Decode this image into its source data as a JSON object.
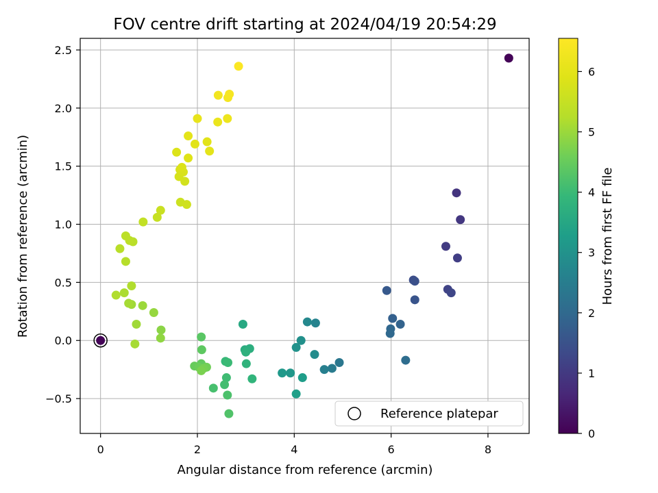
{
  "chart_data": {
    "type": "scatter",
    "title": "FOV centre drift starting at 2024/04/19 20:54:29",
    "xlabel": "Angular distance from reference (arcmin)",
    "ylabel": "Rotation from reference (arcmin)",
    "xlim": [
      -0.42,
      8.85
    ],
    "ylim": [
      -0.8,
      2.6
    ],
    "xticks": [
      0,
      2,
      4,
      6,
      8
    ],
    "yticks": [
      -0.5,
      0.0,
      0.5,
      1.0,
      1.5,
      2.0,
      2.5
    ],
    "xtick_labels": [
      "0",
      "2",
      "4",
      "6",
      "8"
    ],
    "ytick_labels": [
      "−0.5",
      "0.0",
      "0.5",
      "1.0",
      "1.5",
      "2.0",
      "2.5"
    ],
    "grid": true,
    "legend": {
      "position": "bottom-right",
      "label": "Reference platepar"
    },
    "colorbar": {
      "label": "Hours from first FF file",
      "min": 0,
      "max": 6.55,
      "ticks": [
        0,
        1,
        2,
        3,
        4,
        5,
        6
      ],
      "tick_labels": [
        "0",
        "1",
        "2",
        "3",
        "4",
        "5",
        "6"
      ],
      "colormap": "viridis"
    },
    "reference_point": {
      "x": 0,
      "y": 0,
      "label": "Reference platepar"
    },
    "points": [
      {
        "x": 0.0,
        "y": 0.0,
        "hours": 0.05
      },
      {
        "x": 8.43,
        "y": 2.43,
        "hours": 0.05
      },
      {
        "x": 7.35,
        "y": 1.27,
        "hours": 0.9
      },
      {
        "x": 7.43,
        "y": 1.04,
        "hours": 0.95
      },
      {
        "x": 7.13,
        "y": 0.81,
        "hours": 1.05
      },
      {
        "x": 7.37,
        "y": 0.71,
        "hours": 1.1
      },
      {
        "x": 7.17,
        "y": 0.44,
        "hours": 1.2
      },
      {
        "x": 7.24,
        "y": 0.41,
        "hours": 1.25
      },
      {
        "x": 6.46,
        "y": 0.52,
        "hours": 1.4
      },
      {
        "x": 6.49,
        "y": 0.51,
        "hours": 1.45
      },
      {
        "x": 6.49,
        "y": 0.35,
        "hours": 1.55
      },
      {
        "x": 5.91,
        "y": 0.43,
        "hours": 1.65
      },
      {
        "x": 6.03,
        "y": 0.19,
        "hours": 1.8
      },
      {
        "x": 6.19,
        "y": 0.14,
        "hours": 1.85
      },
      {
        "x": 5.99,
        "y": 0.1,
        "hours": 1.95
      },
      {
        "x": 5.98,
        "y": 0.06,
        "hours": 2.0
      },
      {
        "x": 6.3,
        "y": -0.17,
        "hours": 2.1
      },
      {
        "x": 4.93,
        "y": -0.19,
        "hours": 2.35
      },
      {
        "x": 4.78,
        "y": -0.24,
        "hours": 2.45
      },
      {
        "x": 4.62,
        "y": -0.25,
        "hours": 2.55
      },
      {
        "x": 4.44,
        "y": 0.15,
        "hours": 2.65
      },
      {
        "x": 4.27,
        "y": 0.16,
        "hours": 2.75
      },
      {
        "x": 4.42,
        "y": -0.12,
        "hours": 2.85
      },
      {
        "x": 4.14,
        "y": 0.0,
        "hours": 2.95
      },
      {
        "x": 4.04,
        "y": -0.06,
        "hours": 3.0
      },
      {
        "x": 3.92,
        "y": -0.28,
        "hours": 3.1
      },
      {
        "x": 3.75,
        "y": -0.28,
        "hours": 3.15
      },
      {
        "x": 4.17,
        "y": -0.32,
        "hours": 3.25
      },
      {
        "x": 4.04,
        "y": -0.46,
        "hours": 3.3
      },
      {
        "x": 2.94,
        "y": 0.14,
        "hours": 3.55
      },
      {
        "x": 2.98,
        "y": -0.08,
        "hours": 3.65
      },
      {
        "x": 3.08,
        "y": -0.07,
        "hours": 3.7
      },
      {
        "x": 3.0,
        "y": -0.1,
        "hours": 3.75
      },
      {
        "x": 3.01,
        "y": -0.2,
        "hours": 3.8
      },
      {
        "x": 3.13,
        "y": -0.33,
        "hours": 3.85
      },
      {
        "x": 2.58,
        "y": -0.18,
        "hours": 3.95
      },
      {
        "x": 2.63,
        "y": -0.19,
        "hours": 4.0
      },
      {
        "x": 2.6,
        "y": -0.32,
        "hours": 4.05
      },
      {
        "x": 2.56,
        "y": -0.38,
        "hours": 4.1
      },
      {
        "x": 2.33,
        "y": -0.41,
        "hours": 4.15
      },
      {
        "x": 2.62,
        "y": -0.47,
        "hours": 4.2
      },
      {
        "x": 2.65,
        "y": -0.63,
        "hours": 4.25
      },
      {
        "x": 2.08,
        "y": 0.03,
        "hours": 4.35
      },
      {
        "x": 2.09,
        "y": -0.08,
        "hours": 4.4
      },
      {
        "x": 2.08,
        "y": -0.2,
        "hours": 4.45
      },
      {
        "x": 1.94,
        "y": -0.22,
        "hours": 4.5
      },
      {
        "x": 2.03,
        "y": -0.23,
        "hours": 4.55
      },
      {
        "x": 2.19,
        "y": -0.23,
        "hours": 4.6
      },
      {
        "x": 2.13,
        "y": -0.24,
        "hours": 4.65
      },
      {
        "x": 2.08,
        "y": -0.26,
        "hours": 4.7
      },
      {
        "x": 1.25,
        "y": 0.09,
        "hours": 4.85
      },
      {
        "x": 1.24,
        "y": 0.02,
        "hours": 4.9
      },
      {
        "x": 1.1,
        "y": 0.24,
        "hours": 4.95
      },
      {
        "x": 0.87,
        "y": 0.3,
        "hours": 5.0
      },
      {
        "x": 0.74,
        "y": 0.14,
        "hours": 5.05
      },
      {
        "x": 0.71,
        "y": -0.03,
        "hours": 5.1
      },
      {
        "x": 0.64,
        "y": 0.31,
        "hours": 5.05
      },
      {
        "x": 0.58,
        "y": 0.32,
        "hours": 5.1
      },
      {
        "x": 0.49,
        "y": 0.41,
        "hours": 5.15
      },
      {
        "x": 0.32,
        "y": 0.39,
        "hours": 5.2
      },
      {
        "x": 0.64,
        "y": 0.47,
        "hours": 5.2
      },
      {
        "x": 0.52,
        "y": 0.68,
        "hours": 5.25
      },
      {
        "x": 0.4,
        "y": 0.79,
        "hours": 5.3
      },
      {
        "x": 0.67,
        "y": 0.85,
        "hours": 5.3
      },
      {
        "x": 0.6,
        "y": 0.86,
        "hours": 5.35
      },
      {
        "x": 0.52,
        "y": 0.9,
        "hours": 5.35
      },
      {
        "x": 0.88,
        "y": 1.02,
        "hours": 5.45
      },
      {
        "x": 1.17,
        "y": 1.06,
        "hours": 5.5
      },
      {
        "x": 1.24,
        "y": 1.12,
        "hours": 5.55
      },
      {
        "x": 1.65,
        "y": 1.19,
        "hours": 5.6
      },
      {
        "x": 1.78,
        "y": 1.17,
        "hours": 5.65
      },
      {
        "x": 1.74,
        "y": 1.37,
        "hours": 5.7
      },
      {
        "x": 1.62,
        "y": 1.41,
        "hours": 5.75
      },
      {
        "x": 1.71,
        "y": 1.45,
        "hours": 5.8
      },
      {
        "x": 1.64,
        "y": 1.47,
        "hours": 5.8
      },
      {
        "x": 1.68,
        "y": 1.49,
        "hours": 5.85
      },
      {
        "x": 1.57,
        "y": 1.62,
        "hours": 5.85
      },
      {
        "x": 1.81,
        "y": 1.57,
        "hours": 5.9
      },
      {
        "x": 1.95,
        "y": 1.69,
        "hours": 5.95
      },
      {
        "x": 2.2,
        "y": 1.71,
        "hours": 5.95
      },
      {
        "x": 2.25,
        "y": 1.63,
        "hours": 6.0
      },
      {
        "x": 1.81,
        "y": 1.76,
        "hours": 6.0
      },
      {
        "x": 2.0,
        "y": 1.91,
        "hours": 6.1
      },
      {
        "x": 2.42,
        "y": 1.88,
        "hours": 6.15
      },
      {
        "x": 2.62,
        "y": 1.91,
        "hours": 6.2
      },
      {
        "x": 2.43,
        "y": 2.11,
        "hours": 6.3
      },
      {
        "x": 2.63,
        "y": 2.09,
        "hours": 6.35
      },
      {
        "x": 2.66,
        "y": 2.12,
        "hours": 6.4
      },
      {
        "x": 2.85,
        "y": 2.36,
        "hours": 6.5
      }
    ]
  }
}
